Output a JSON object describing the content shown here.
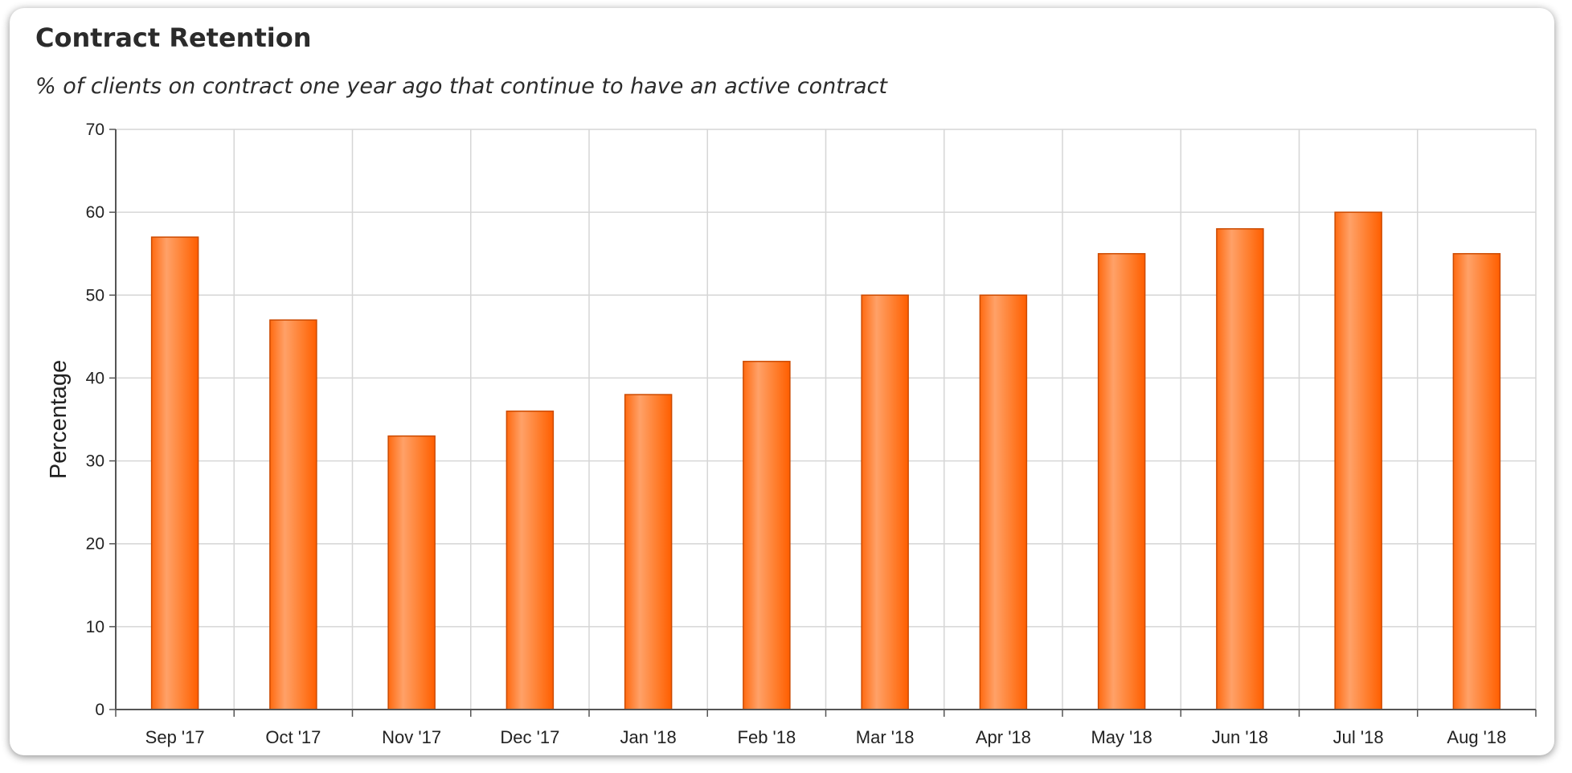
{
  "card": {
    "title": "Contract Retention",
    "subtitle": "% of clients on contract one year ago that continue to have an active contract"
  },
  "chart_data": {
    "type": "bar",
    "categories": [
      "Sep '17",
      "Oct '17",
      "Nov '17",
      "Dec '17",
      "Jan '18",
      "Feb '18",
      "Mar '18",
      "Apr '18",
      "May '18",
      "Jun '18",
      "Jul '18",
      "Aug '18"
    ],
    "values": [
      57,
      47,
      33,
      36,
      38,
      42,
      50,
      50,
      55,
      58,
      60,
      55
    ],
    "xlabel": "",
    "ylabel": "Percentage",
    "ylim": [
      0,
      70
    ],
    "yticks": [
      "0",
      "10",
      "20",
      "30",
      "40",
      "50",
      "60",
      "70"
    ],
    "grid": true,
    "legend": "none",
    "colors": {
      "bar": "#ff7a22",
      "bar_edge": "#cc4a00",
      "grid": "#d6d6d6",
      "axis": "#555555"
    }
  }
}
